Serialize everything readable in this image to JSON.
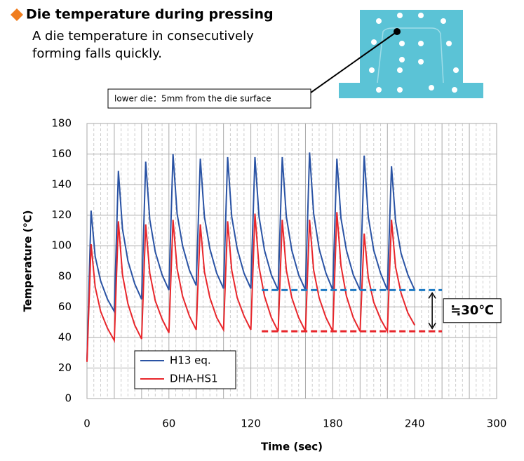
{
  "chart_data": {
    "type": "line",
    "title": "Die temperature during pressing",
    "subtitle_lines": [
      "A die temperature in consecutively",
      "forming falls quickly."
    ],
    "callout": "lower die：5mm from the die surface",
    "x_label": "Time (sec)",
    "y_label": "Temperature (℃)",
    "xlim": [
      0,
      300
    ],
    "xticks": [
      0,
      60,
      120,
      180,
      240,
      300
    ],
    "ylim": [
      0,
      180
    ],
    "yticks": [
      0,
      20,
      40,
      60,
      80,
      100,
      120,
      140,
      160,
      180
    ],
    "grid": true,
    "x": [
      0,
      3,
      6,
      10,
      15,
      20,
      23,
      26,
      30,
      35,
      40,
      43,
      46,
      50,
      55,
      60,
      63,
      66,
      70,
      75,
      80,
      83,
      86,
      90,
      95,
      100,
      103,
      106,
      110,
      115,
      120,
      123,
      126,
      130,
      135,
      140,
      143,
      146,
      150,
      155,
      160,
      163,
      166,
      170,
      175,
      180,
      183,
      186,
      190,
      195,
      200,
      203,
      206,
      210,
      215,
      220,
      223,
      226,
      230,
      235,
      240
    ],
    "series": [
      {
        "name": "H13 eq.",
        "color": "#2a53a4",
        "values": [
          25,
          123,
          93,
          77,
          65,
          57,
          149,
          111,
          90,
          75,
          65,
          155,
          117,
          96,
          81,
          71,
          160,
          121,
          100,
          84,
          74,
          157,
          119,
          98,
          82,
          72,
          158,
          119,
          98,
          82,
          72,
          158,
          119,
          97,
          81,
          71,
          158,
          119,
          97,
          81,
          71,
          161,
          121,
          98,
          82,
          71,
          157,
          118,
          97,
          81,
          71,
          159,
          119,
          97,
          82,
          71,
          152,
          116,
          95,
          81,
          71
        ]
      },
      {
        "name": "DHA-HS1",
        "color": "#e8262b",
        "values": [
          24,
          101,
          73,
          57,
          46,
          38,
          116,
          81,
          62,
          48,
          39,
          114,
          82,
          64,
          52,
          43,
          117,
          85,
          67,
          54,
          45,
          114,
          83,
          66,
          53,
          45,
          116,
          84,
          66,
          54,
          45,
          121,
          86,
          67,
          53,
          44,
          117,
          84,
          66,
          53,
          44,
          117,
          84,
          66,
          53,
          44,
          122,
          87,
          67,
          53,
          44,
          108,
          79,
          63,
          52,
          44,
          117,
          86,
          69,
          56,
          48
        ]
      }
    ],
    "legend": "lower-left",
    "reference_lines": [
      {
        "value": 71,
        "color": "#1f7bc4",
        "xrange": [
          128,
          260
        ]
      },
      {
        "value": 44,
        "color": "#e8262b",
        "xrange": [
          128,
          260
        ]
      }
    ],
    "annotation": "≒30℃"
  }
}
